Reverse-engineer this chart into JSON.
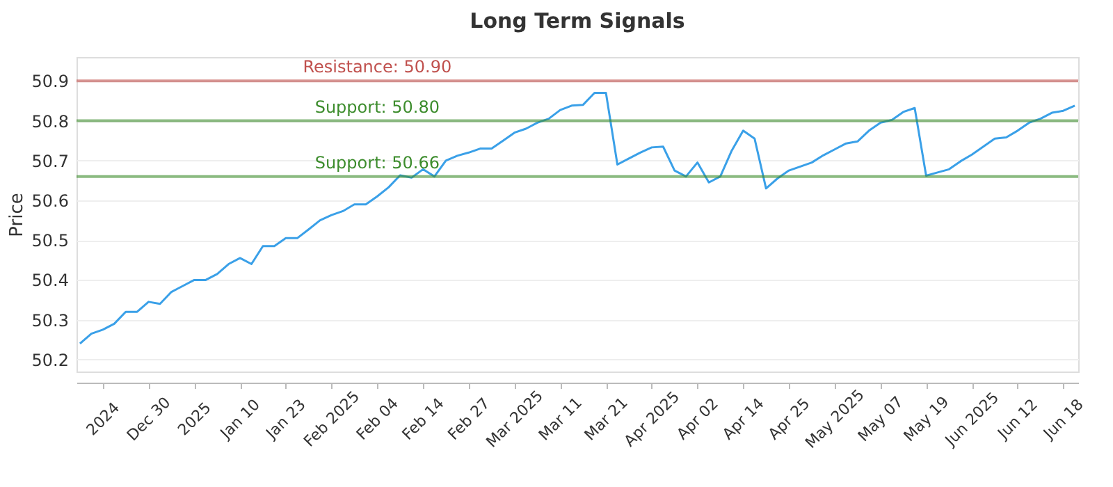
{
  "chart_data": {
    "type": "line",
    "title": "Long Term Signals",
    "ylabel": "Price",
    "categories": [
      null,
      null,
      "2024",
      null,
      null,
      null,
      "Dec 30",
      null,
      null,
      null,
      "2025",
      null,
      null,
      null,
      "Jan 10",
      null,
      null,
      null,
      "Jan 23",
      null,
      null,
      null,
      "Feb 2025",
      null,
      null,
      null,
      "Feb 04",
      null,
      null,
      null,
      "Feb 14",
      null,
      null,
      null,
      "Feb 27",
      null,
      null,
      null,
      "Mar 2025",
      null,
      null,
      null,
      "Mar 11",
      null,
      null,
      null,
      "Mar 21",
      null,
      null,
      null,
      "Apr 2025",
      null,
      null,
      null,
      "Apr 02",
      null,
      null,
      null,
      "Apr 14",
      null,
      null,
      null,
      "Apr 25",
      null,
      null,
      null,
      "May 2025",
      null,
      null,
      null,
      "May 07",
      null,
      null,
      null,
      "May 19",
      null,
      null,
      null,
      "Jun 2025",
      null,
      null,
      null,
      "Jun 12",
      null,
      null,
      null,
      "Jun 18",
      null
    ],
    "series": [
      {
        "color": "#3aa0e8",
        "values": [
          50.24,
          50.265,
          50.275,
          50.29,
          50.32,
          50.32,
          50.345,
          50.34,
          50.37,
          50.385,
          50.4,
          50.4,
          50.415,
          50.44,
          50.455,
          50.44,
          50.485,
          50.485,
          50.505,
          50.505,
          50.527,
          50.55,
          50.563,
          50.573,
          50.59,
          50.59,
          50.61,
          50.633,
          50.663,
          50.657,
          50.678,
          50.66,
          50.7,
          50.712,
          50.72,
          50.73,
          50.73,
          50.75,
          50.77,
          50.78,
          50.795,
          50.805,
          50.827,
          50.838,
          50.84,
          50.87,
          50.87,
          50.69,
          50.705,
          50.72,
          50.733,
          50.735,
          50.675,
          50.66,
          50.695,
          50.645,
          50.66,
          50.725,
          50.775,
          50.755,
          50.63,
          50.655,
          50.675,
          50.685,
          50.695,
          50.713,
          50.728,
          50.743,
          50.748,
          50.775,
          50.795,
          50.802,
          50.822,
          50.832,
          50.662,
          50.67,
          50.678,
          50.698,
          50.715,
          50.735,
          50.755,
          50.758,
          50.775,
          50.795,
          50.805,
          50.82,
          50.825,
          50.838
        ]
      }
    ],
    "ylim": [
      50.17,
      50.96
    ],
    "yticks": [
      50.2,
      50.3,
      50.4,
      50.5,
      50.6,
      50.7,
      50.8,
      50.9
    ],
    "grid": "y",
    "marker": "none",
    "line_style": "solid",
    "ref_lines": [
      {
        "axis": "y",
        "value": 50.9,
        "label": "Resistance: 50.90",
        "color": "#c0504d"
      },
      {
        "axis": "y",
        "value": 50.8,
        "label": "Support: 50.80",
        "color": "#3c8c2c"
      },
      {
        "axis": "y",
        "value": 50.66,
        "label": "Support: 50.66",
        "color": "#3c8c2c"
      }
    ]
  }
}
